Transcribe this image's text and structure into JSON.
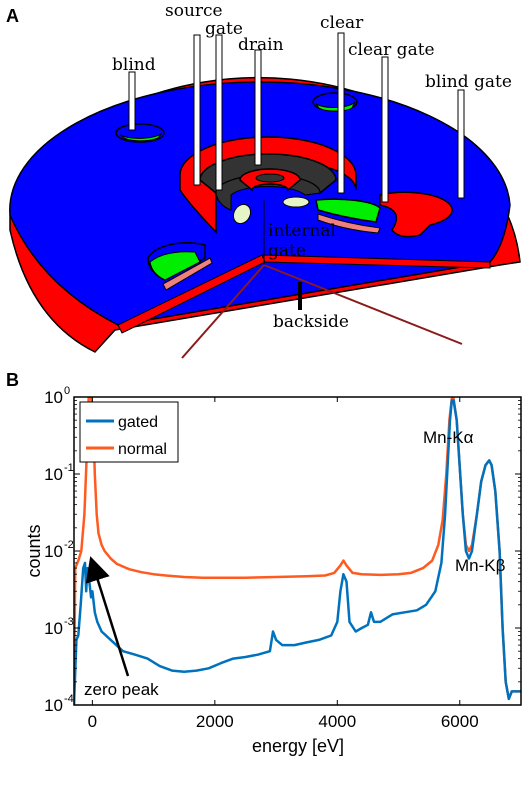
{
  "panel_a": {
    "panel_label": "A",
    "labels": {
      "source": "source",
      "gate": "gate",
      "drain": "drain",
      "blind": "blind",
      "clear": "clear",
      "clear_gate": "clear gate",
      "blind_gate": "blind gate",
      "internal": "internal",
      "internal_gate": "gate",
      "backside": "backside"
    },
    "colors": {
      "blue": "#0000ff",
      "red": "#ff0000",
      "green": "#00ee00",
      "dark": "#333333",
      "pink": "#f08080",
      "pale": "#e6f5c8",
      "backside_line": "#8b1a1a"
    }
  },
  "chart_data": {
    "type": "line",
    "panel_label": "B",
    "xlabel": "energy [eV]",
    "ylabel": "counts",
    "xlim": [
      -300,
      7000
    ],
    "ylim": [
      0.0001,
      1
    ],
    "yscale": "log",
    "x_ticks": [
      0,
      2000,
      4000,
      6000
    ],
    "x_tick_labels": [
      "0",
      "2000",
      "4000",
      "6000"
    ],
    "y_ticks": [
      0.0001,
      0.001,
      0.01,
      0.1,
      1
    ],
    "y_tick_labels": [
      {
        "base": "10",
        "exp": "-4"
      },
      {
        "base": "10",
        "exp": "-3"
      },
      {
        "base": "10",
        "exp": "-2"
      },
      {
        "base": "10",
        "exp": "-1"
      },
      {
        "base": "10",
        "exp": "0"
      }
    ],
    "legend_position": "top-left",
    "grid": false,
    "series": [
      {
        "name": "normal",
        "color": "#ff5a1f",
        "points": [
          [
            -300,
            0.0001
          ],
          [
            -280,
            0.006
          ],
          [
            -230,
            0.0075
          ],
          [
            -180,
            0.01
          ],
          [
            -130,
            0.03
          ],
          [
            -90,
            0.2
          ],
          [
            -60,
            1
          ],
          [
            -20,
            1
          ],
          [
            10,
            0.6
          ],
          [
            40,
            0.1
          ],
          [
            70,
            0.03
          ],
          [
            100,
            0.017
          ],
          [
            150,
            0.012
          ],
          [
            200,
            0.01
          ],
          [
            300,
            0.008
          ],
          [
            400,
            0.0068
          ],
          [
            600,
            0.0058
          ],
          [
            800,
            0.0053
          ],
          [
            1000,
            0.005
          ],
          [
            1200,
            0.0048
          ],
          [
            1500,
            0.0046
          ],
          [
            1800,
            0.0045
          ],
          [
            2000,
            0.0045
          ],
          [
            2500,
            0.0045
          ],
          [
            3000,
            0.0046
          ],
          [
            3500,
            0.0047
          ],
          [
            3800,
            0.0048
          ],
          [
            3950,
            0.0052
          ],
          [
            4050,
            0.0065
          ],
          [
            4100,
            0.0075
          ],
          [
            4150,
            0.0065
          ],
          [
            4250,
            0.0052
          ],
          [
            4400,
            0.005
          ],
          [
            4700,
            0.0049
          ],
          [
            5000,
            0.005
          ],
          [
            5200,
            0.0052
          ],
          [
            5400,
            0.006
          ],
          [
            5550,
            0.0075
          ],
          [
            5650,
            0.012
          ],
          [
            5720,
            0.025
          ],
          [
            5780,
            0.1
          ],
          [
            5830,
            0.5
          ],
          [
            5870,
            0.95
          ],
          [
            5900,
            0.95
          ],
          [
            5950,
            0.5
          ],
          [
            6000,
            0.12
          ],
          [
            6050,
            0.03
          ],
          [
            6100,
            0.012
          ],
          [
            6150,
            0.01
          ],
          [
            6200,
            0.012
          ],
          [
            6280,
            0.03
          ],
          [
            6350,
            0.08
          ],
          [
            6420,
            0.13
          ],
          [
            6480,
            0.15
          ],
          [
            6520,
            0.13
          ],
          [
            6580,
            0.06
          ],
          [
            6650,
            0.01
          ],
          [
            6700,
            0.001
          ],
          [
            6750,
            0.0002
          ],
          [
            6800,
            0.00012
          ],
          [
            6850,
            0.00015
          ],
          [
            6900,
            0.00015
          ],
          [
            7000,
            0.00015
          ]
        ]
      },
      {
        "name": "gated",
        "color": "#0072bd",
        "points": [
          [
            -300,
            0.0001
          ],
          [
            -260,
            0.0007
          ],
          [
            -230,
            0.0008
          ],
          [
            -190,
            0.002
          ],
          [
            -150,
            0.006
          ],
          [
            -120,
            0.007
          ],
          [
            -100,
            0.003
          ],
          [
            -80,
            0.006
          ],
          [
            -50,
            0.004
          ],
          [
            -20,
            0.0025
          ],
          [
            0,
            0.003
          ],
          [
            40,
            0.0016
          ],
          [
            80,
            0.0012
          ],
          [
            150,
            0.0009
          ],
          [
            300,
            0.0007
          ],
          [
            500,
            0.0005
          ],
          [
            700,
            0.00045
          ],
          [
            900,
            0.0004
          ],
          [
            1100,
            0.00032
          ],
          [
            1300,
            0.00028
          ],
          [
            1500,
            0.00027
          ],
          [
            1700,
            0.00028
          ],
          [
            1900,
            0.0003
          ],
          [
            2100,
            0.00035
          ],
          [
            2300,
            0.0004
          ],
          [
            2500,
            0.00042
          ],
          [
            2700,
            0.00045
          ],
          [
            2900,
            0.0005
          ],
          [
            2950,
            0.0009
          ],
          [
            3000,
            0.0007
          ],
          [
            3100,
            0.0006
          ],
          [
            3300,
            0.0006
          ],
          [
            3500,
            0.00065
          ],
          [
            3700,
            0.0007
          ],
          [
            3900,
            0.0008
          ],
          [
            4000,
            0.0012
          ],
          [
            4050,
            0.003
          ],
          [
            4100,
            0.005
          ],
          [
            4150,
            0.004
          ],
          [
            4200,
            0.0012
          ],
          [
            4300,
            0.0009
          ],
          [
            4400,
            0.001
          ],
          [
            4500,
            0.0011
          ],
          [
            4550,
            0.0016
          ],
          [
            4600,
            0.0012
          ],
          [
            4700,
            0.0012
          ],
          [
            4900,
            0.0015
          ],
          [
            5100,
            0.0016
          ],
          [
            5300,
            0.0017
          ],
          [
            5450,
            0.002
          ],
          [
            5600,
            0.003
          ],
          [
            5700,
            0.007
          ],
          [
            5760,
            0.03
          ],
          [
            5800,
            0.12
          ],
          [
            5840,
            0.5
          ],
          [
            5870,
            0.9
          ],
          [
            5900,
            0.9
          ],
          [
            5950,
            0.5
          ],
          [
            6000,
            0.12
          ],
          [
            6050,
            0.03
          ],
          [
            6100,
            0.01
          ],
          [
            6150,
            0.008
          ],
          [
            6200,
            0.01
          ],
          [
            6280,
            0.03
          ],
          [
            6350,
            0.08
          ],
          [
            6420,
            0.13
          ],
          [
            6480,
            0.15
          ],
          [
            6520,
            0.13
          ],
          [
            6580,
            0.06
          ],
          [
            6650,
            0.01
          ],
          [
            6700,
            0.001
          ],
          [
            6750,
            0.0002
          ],
          [
            6800,
            0.00012
          ],
          [
            6850,
            0.00015
          ],
          [
            7000,
            0.00015
          ]
        ]
      }
    ],
    "annotations": [
      {
        "text": "Mn-Kα",
        "x": 6000,
        "y": 0.55
      },
      {
        "text": "Mn-Kβ",
        "x": 6100,
        "y": 0.0085
      },
      {
        "text": "zero peak",
        "x": 300,
        "y": 0.00013
      }
    ]
  }
}
